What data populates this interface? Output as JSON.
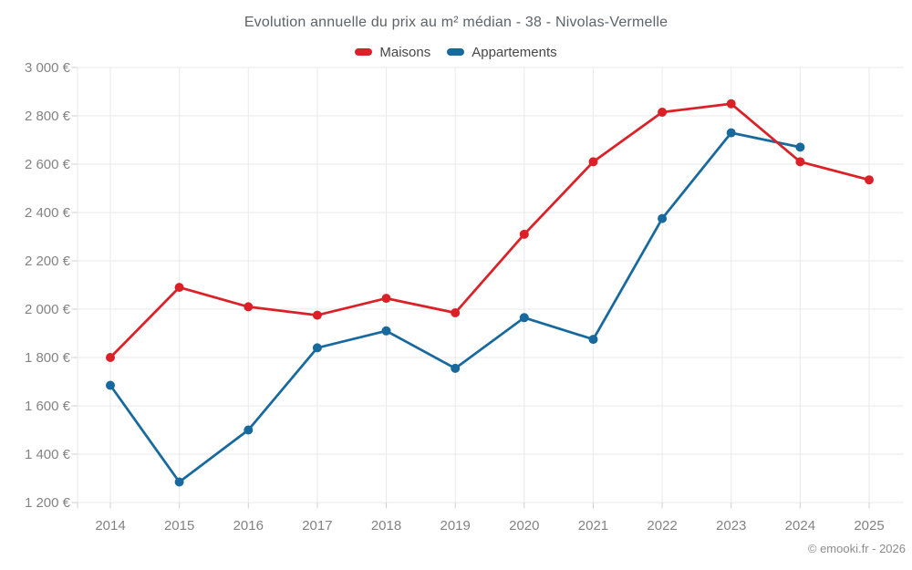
{
  "title": "Evolution annuelle du prix au m² médian - 38 - Nivolas-Vermelle",
  "footer": "© emooki.fr - 2026",
  "legend": [
    {
      "label": "Maisons",
      "color": "#db2127"
    },
    {
      "label": "Appartements",
      "color": "#17699e"
    }
  ],
  "colors": {
    "maisons": "#db2127",
    "appartements": "#17699e",
    "grid": "#e9e9e9",
    "tick": "#cfcfcf",
    "axis_label": "#838383"
  },
  "chart_data": {
    "type": "line",
    "title": "Evolution annuelle du prix au m² médian - 38 - Nivolas-Vermelle",
    "x": [
      2014,
      2015,
      2016,
      2017,
      2018,
      2019,
      2020,
      2021,
      2022,
      2023,
      2024,
      2025
    ],
    "series": [
      {
        "name": "Maisons",
        "color": "#db2127",
        "values": [
          1800,
          2090,
          2010,
          1975,
          2045,
          1985,
          2310,
          2610,
          2815,
          2850,
          2610,
          2535
        ]
      },
      {
        "name": "Appartements",
        "color": "#17699e",
        "values": [
          1685,
          1285,
          1500,
          1840,
          1910,
          1755,
          1965,
          1875,
          2375,
          2730,
          2670,
          null
        ]
      }
    ],
    "ylim": [
      1200,
      3000
    ],
    "ytick_step": 200,
    "ytick_suffix": " €",
    "grid": true,
    "legend_position": "top",
    "marker": "circle"
  }
}
